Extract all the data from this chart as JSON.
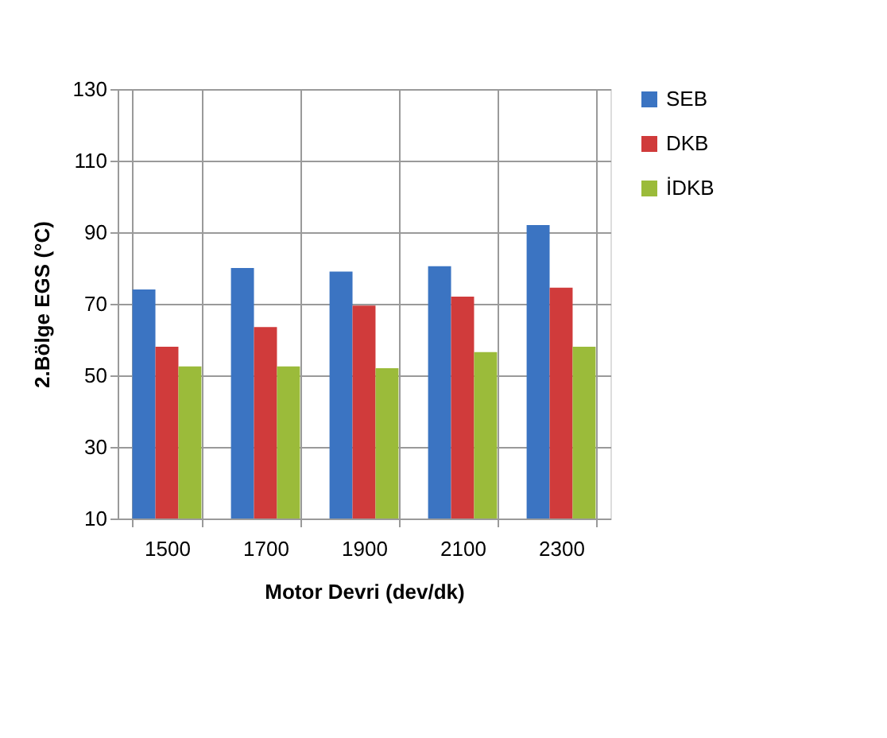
{
  "chart_data": {
    "type": "bar",
    "xlabel": "Motor Devri (dev/dk)",
    "ylabel": "2.Bölge EGS (°C)",
    "categories": [
      "1500",
      "1700",
      "1900",
      "2100",
      "2300"
    ],
    "series": [
      {
        "name": "SEB",
        "color": "#3b74c2",
        "values": [
          74,
          80,
          79,
          80.5,
          92
        ]
      },
      {
        "name": "DKB",
        "color": "#d03b3b",
        "values": [
          58,
          63.5,
          69.5,
          72,
          74.5
        ]
      },
      {
        "name": "İDKB",
        "color": "#9bbb3a",
        "values": [
          52.5,
          52.5,
          52,
          56.5,
          58
        ]
      }
    ],
    "ylim": [
      10,
      130
    ],
    "yticks": [
      10,
      30,
      50,
      70,
      90,
      110,
      130
    ],
    "grid": true,
    "legend": "right"
  }
}
